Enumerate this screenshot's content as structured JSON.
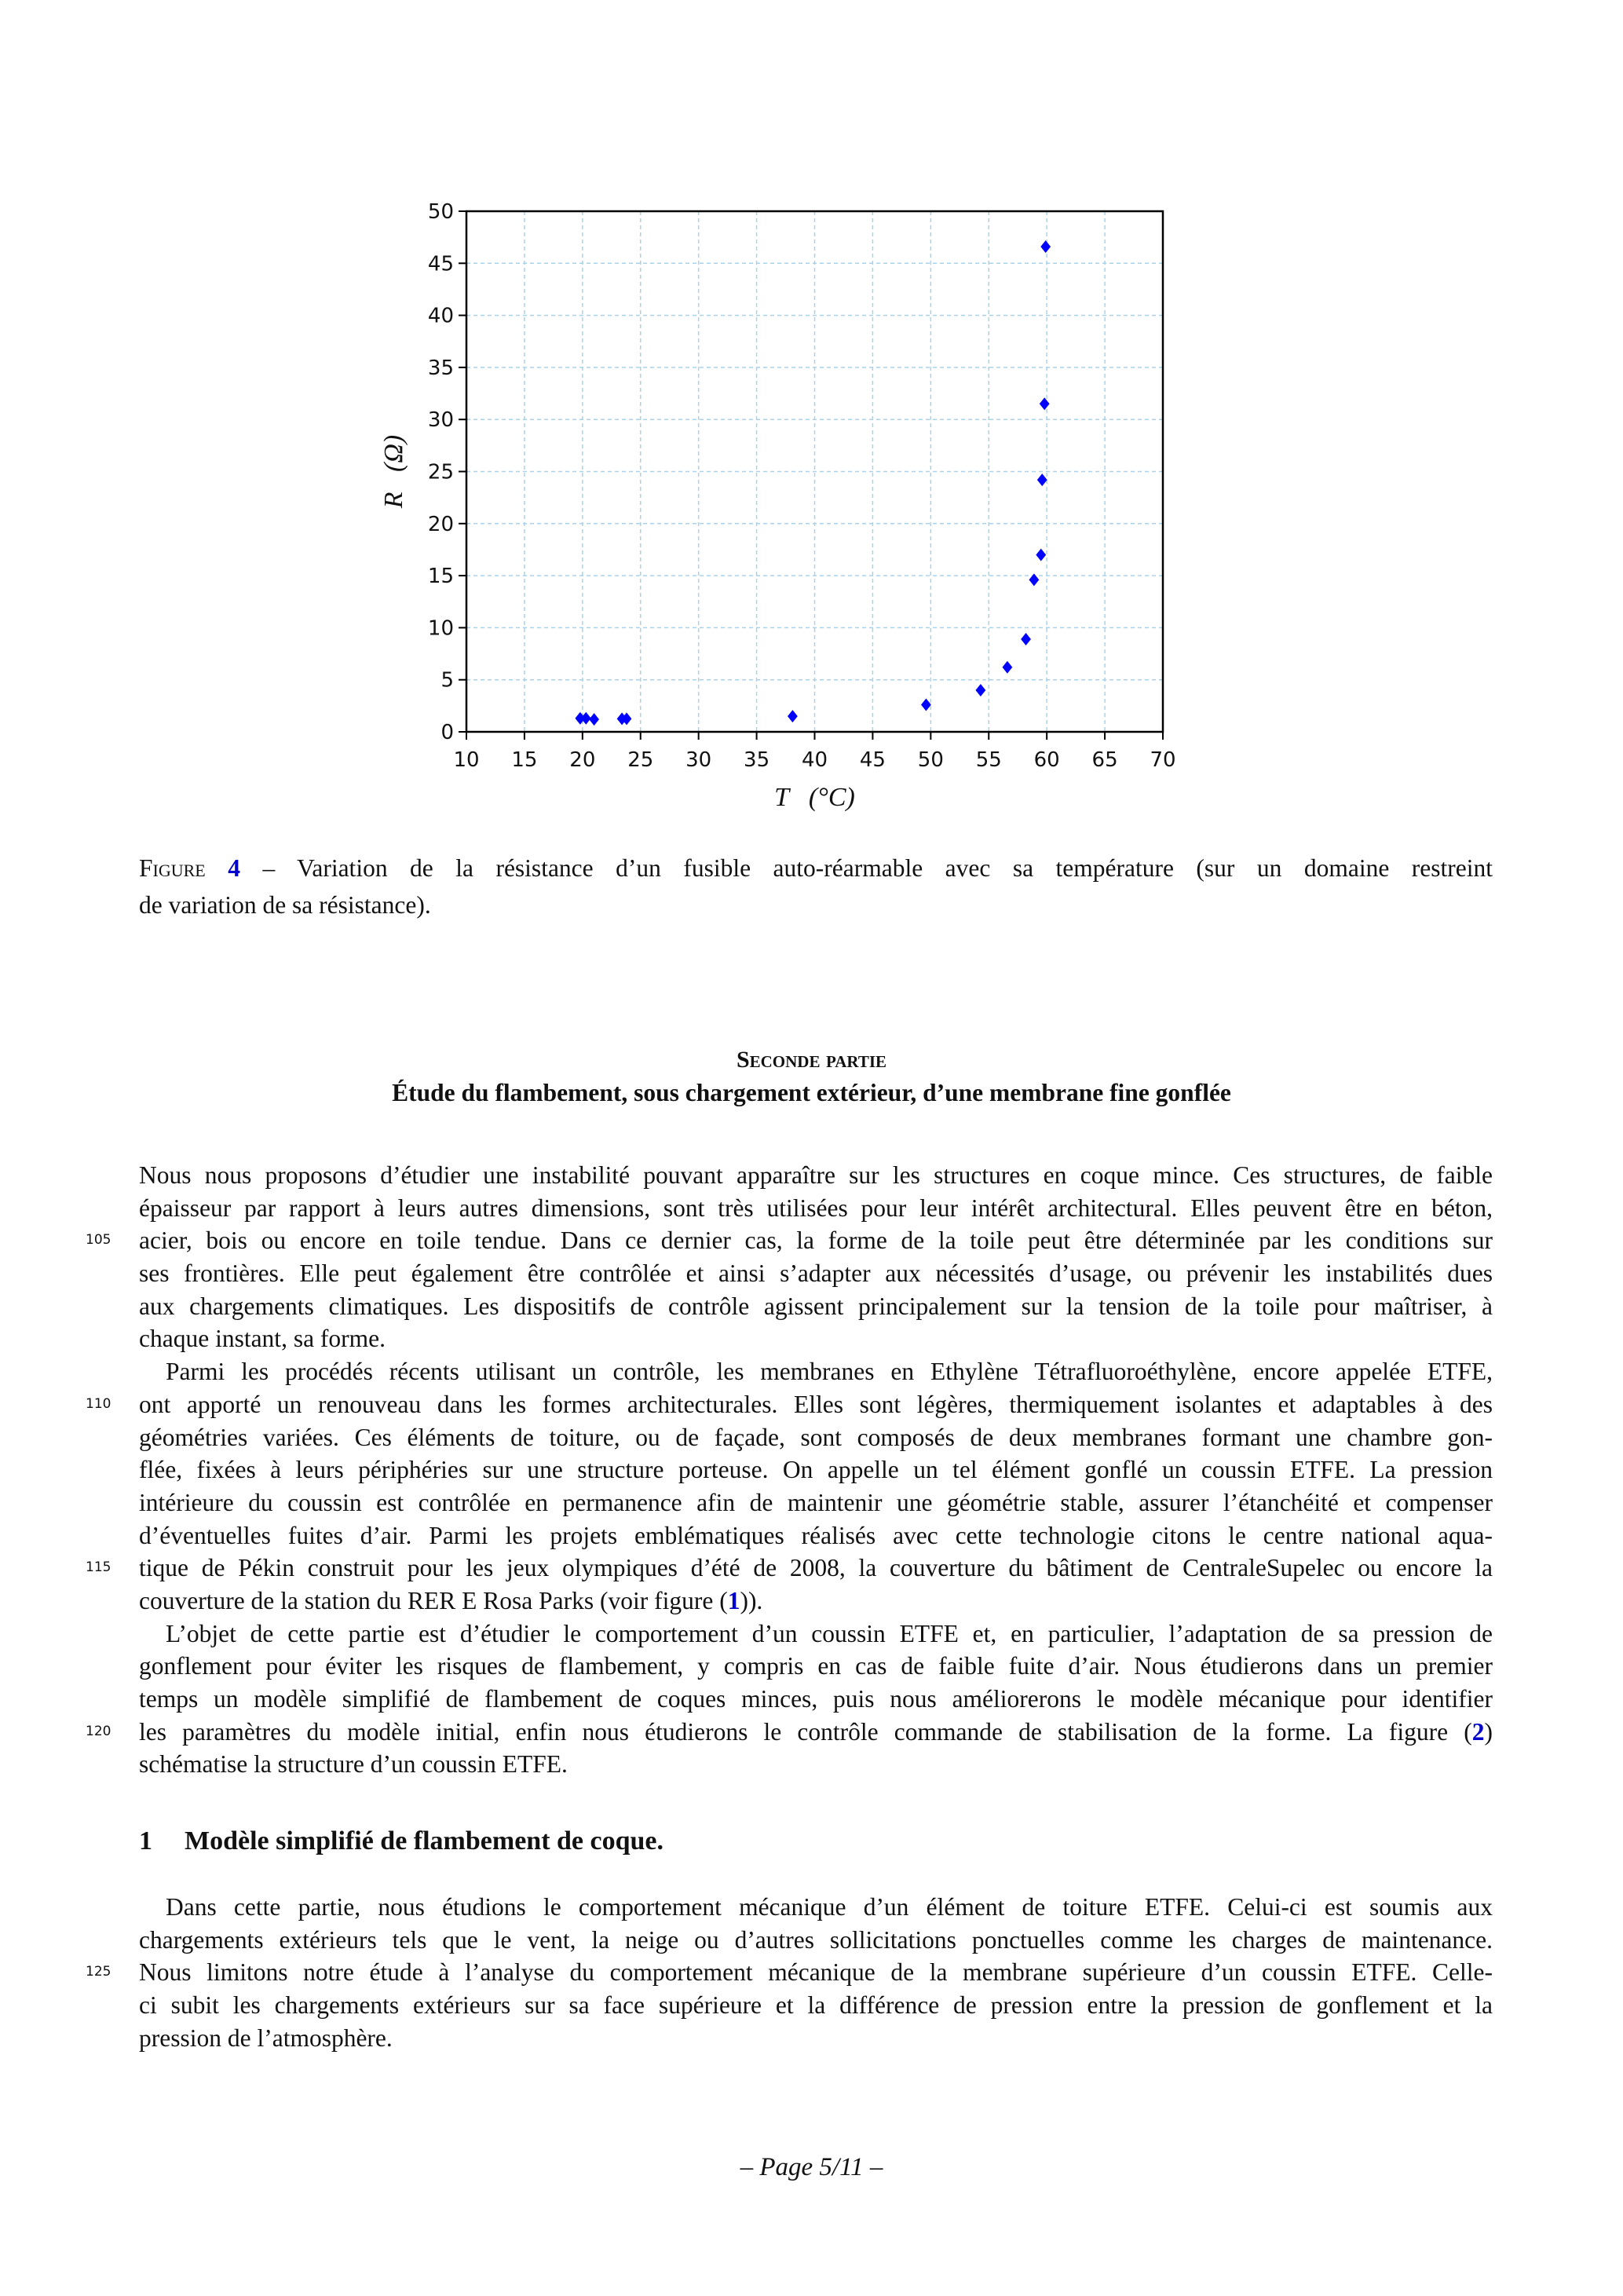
{
  "chart_data": {
    "type": "scatter",
    "xlabel": "T   (°C)",
    "ylabel": "R   (Ω)",
    "xlim": [
      10,
      70
    ],
    "ylim": [
      0,
      50
    ],
    "xticks": [
      10,
      15,
      20,
      25,
      30,
      35,
      40,
      45,
      50,
      55,
      60,
      65,
      70
    ],
    "yticks": [
      0,
      5,
      10,
      15,
      20,
      25,
      30,
      35,
      40,
      45,
      50
    ],
    "grid": true,
    "marker": "diamond",
    "color": "#0000ff",
    "points": [
      {
        "x": 19.8,
        "y": 1.3
      },
      {
        "x": 20.3,
        "y": 1.3
      },
      {
        "x": 21.0,
        "y": 1.2
      },
      {
        "x": 23.4,
        "y": 1.25
      },
      {
        "x": 23.8,
        "y": 1.25
      },
      {
        "x": 38.1,
        "y": 1.5
      },
      {
        "x": 49.6,
        "y": 2.6
      },
      {
        "x": 54.3,
        "y": 4.0
      },
      {
        "x": 56.6,
        "y": 6.2
      },
      {
        "x": 58.2,
        "y": 8.9
      },
      {
        "x": 58.9,
        "y": 14.6
      },
      {
        "x": 59.5,
        "y": 17.0
      },
      {
        "x": 59.6,
        "y": 24.2
      },
      {
        "x": 59.8,
        "y": 31.5
      },
      {
        "x": 59.9,
        "y": 46.6
      }
    ]
  },
  "caption": {
    "label": "Figure",
    "number": "4",
    "lines": [
      " – Variation de la résistance d’un fusible auto-réarmable avec sa température (sur un domaine restreint",
      "de variation de sa résistance)."
    ]
  },
  "part": {
    "label": "Seconde partie",
    "title": "Étude du flambement, sous chargement extérieur, d’une membrane fine gonflée"
  },
  "intro_paragraphs": [
    {
      "lines": [
        {
          "text": "Nous nous proposons d’étudier une instabilité pouvant apparaître sur les structures en coque mince. Ces structures, de faible"
        },
        {
          "text": "épaisseur par rapport à leurs autres dimensions, sont très utilisées pour leur intérêt architectural. Elles peuvent être en béton,"
        },
        {
          "text": "acier, bois ou encore en toile tendue. Dans ce dernier cas, la forme de la toile peut être déterminée par les conditions sur",
          "n": "105"
        },
        {
          "text": "ses frontières. Elle peut également être contrôlée et ainsi s’adapter aux nécessités d’usage, ou prévenir les instabilités dues"
        },
        {
          "text": "aux chargements climatiques. Les dispositifs de contrôle agissent principalement sur la tension de la toile pour maîtriser, à"
        },
        {
          "text": "chaque instant, sa forme."
        }
      ]
    },
    {
      "indent": true,
      "lines": [
        {
          "text": "Parmi les procédés récents utilisant un contrôle, les membranes en Ethylène Tétrafluoroéthylène, encore appelée ETFE,"
        },
        {
          "text": "ont apporté un renouveau dans les formes architecturales. Elles sont légères, thermiquement isolantes et adaptables à des",
          "n": "110"
        },
        {
          "text": "géométries variées. Ces éléments de toiture, ou de façade, sont composés de deux membranes formant une chambre gon-"
        },
        {
          "text": "flée, fixées à leurs périphéries sur une structure porteuse. On appelle un tel élément gonflé un coussin ETFE. La pression"
        },
        {
          "text": "intérieure du coussin est contrôlée en permanence afin de maintenir une géométrie stable, assurer l’étanchéité et compenser"
        },
        {
          "text": "d’éventuelles fuites d’air. Parmi les projets emblématiques réalisés avec cette technologie citons le centre national aqua-"
        },
        {
          "text": "tique de Pékin construit pour les jeux olympiques d’été de 2008, la couverture du bâtiment de CentraleSupelec ou encore la",
          "n": "115"
        },
        {
          "text": "couverture de la station du RER E Rosa Parks (voir figure (",
          "ref": "1",
          "post": "))."
        }
      ]
    },
    {
      "indent": true,
      "lines": [
        {
          "text": "L’objet de cette partie est d’étudier le comportement d’un coussin ETFE et, en particulier, l’adaptation de sa pression de"
        },
        {
          "text": "gonflement pour éviter les risques de flambement, y compris en cas de faible fuite d’air. Nous étudierons dans un premier"
        },
        {
          "text": "temps un modèle simplifié de flambement de coques minces, puis nous améliorerons le modèle mécanique pour identifier"
        },
        {
          "text": "les paramètres du modèle initial, enfin nous étudierons le contrôle commande de stabilisation de la forme. La figure (",
          "ref": "2",
          "post": ")",
          "n": "120"
        },
        {
          "text": "schématise la structure d’un coussin ETFE."
        }
      ]
    }
  ],
  "section": {
    "number": "1",
    "title": "Modèle simplifié de flambement de coque.",
    "paragraphs": [
      {
        "indent": true,
        "lines": [
          {
            "text": "Dans cette partie, nous étudions le comportement mécanique d’un élément de toiture ETFE. Celui-ci est soumis aux"
          },
          {
            "text": "chargements extérieurs tels que le vent, la neige ou d’autres sollicitations ponctuelles comme les charges de maintenance."
          },
          {
            "text": "Nous limitons notre étude à l’analyse du comportement mécanique de la membrane supérieure d’un coussin ETFE. Celle-",
            "n": "125"
          },
          {
            "text": "ci subit les chargements extérieurs sur sa face supérieure et la différence de pression entre la pression de gonflement et la"
          },
          {
            "text": "pression de l’atmosphère."
          }
        ]
      }
    ]
  },
  "footer": {
    "page": "– Page 5/11 –"
  },
  "colors": {
    "link": "#0000cc",
    "marker": "#0000ff",
    "grid": "#a9d3ea"
  }
}
